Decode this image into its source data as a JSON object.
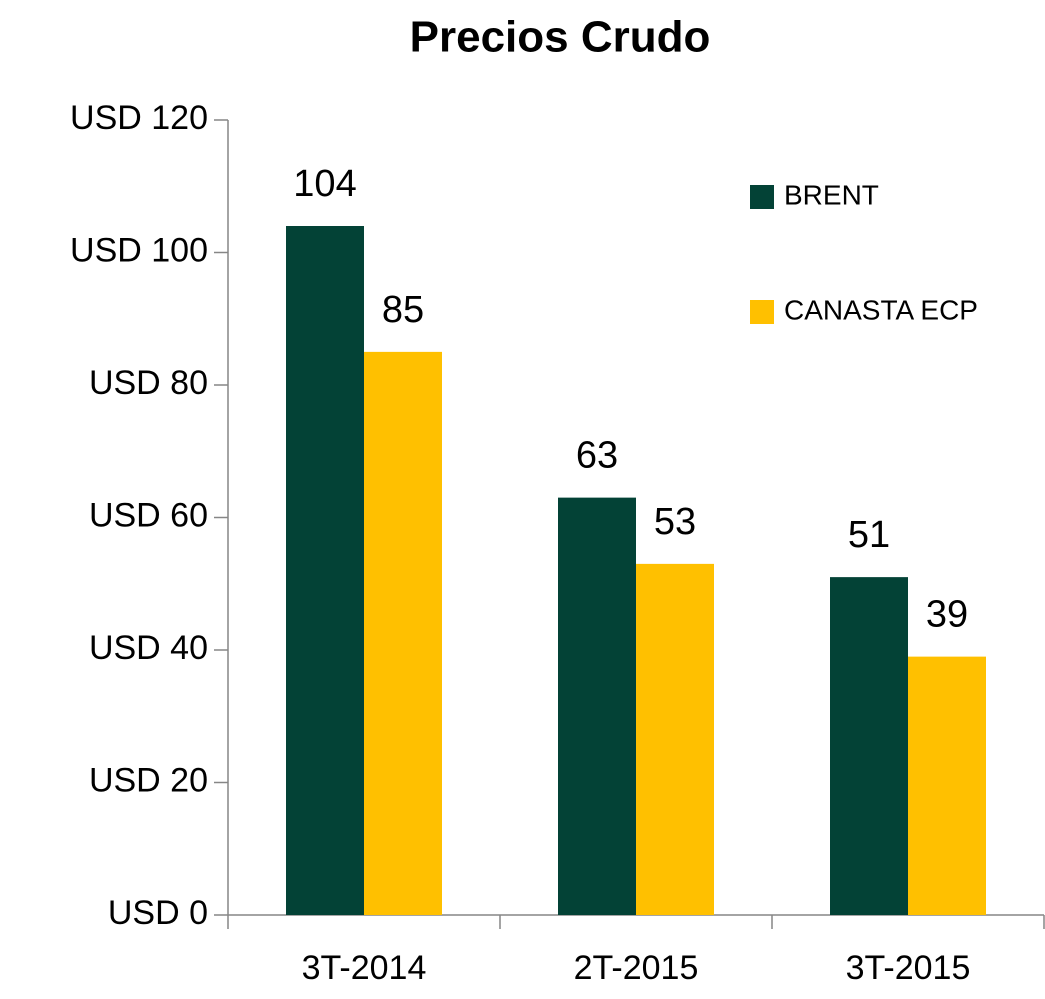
{
  "chart_data": {
    "type": "bar",
    "title": "Precios Crudo",
    "categories": [
      "3T-2014",
      "2T-2015",
      "3T-2015"
    ],
    "series": [
      {
        "name": "BRENT",
        "color": "#034236",
        "values": [
          104,
          63,
          51
        ]
      },
      {
        "name": "CANASTA ECP",
        "color": "#FFC000",
        "values": [
          85,
          53,
          39
        ]
      }
    ],
    "ylim": [
      0,
      120
    ],
    "yticks": [
      {
        "value": 0,
        "label": "USD 0"
      },
      {
        "value": 20,
        "label": "USD 20"
      },
      {
        "value": 40,
        "label": "USD 40"
      },
      {
        "value": 60,
        "label": "USD 60"
      },
      {
        "value": 80,
        "label": "USD 80"
      },
      {
        "value": 100,
        "label": "USD 100"
      },
      {
        "value": 120,
        "label": "USD 120"
      }
    ],
    "legend": "top-right"
  }
}
